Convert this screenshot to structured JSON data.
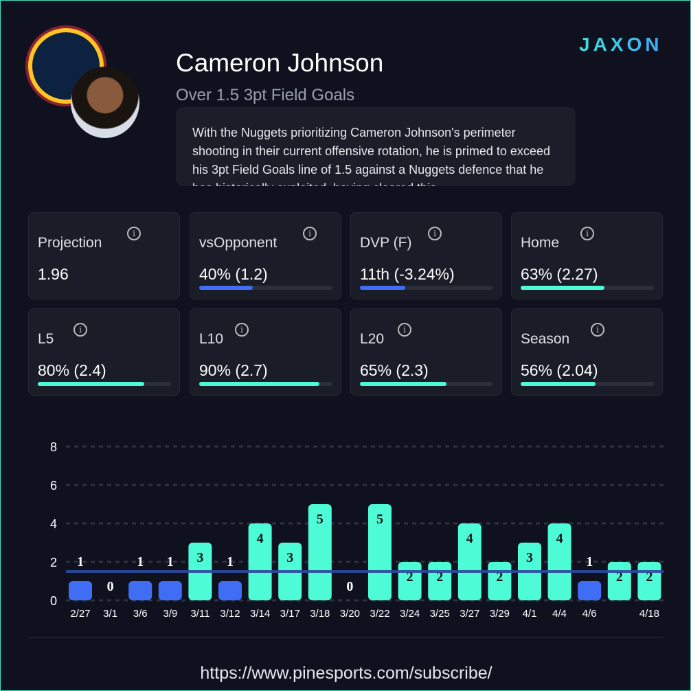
{
  "header": {
    "player_name": "Cameron Johnson",
    "prop": "Over 1.5 3pt Field Goals",
    "description": "With the Nuggets prioritizing Cameron Johnson's perimeter shooting in their current offensive rotation, he is primed to exceed his 3pt Field Goals line of 1.5 against a Nuggets defence that he has historically exploited, having cleared this",
    "brand": "JAXON",
    "team_logo": "denver-nuggets-logo"
  },
  "stats": [
    {
      "label": "Projection",
      "value": "1.96",
      "pct": null,
      "color": null
    },
    {
      "label": "vsOpponent",
      "value": "40% (1.2)",
      "pct": 40,
      "color": "#3f6ef5"
    },
    {
      "label": "DVP (F)",
      "value": "11th (-3.24%)",
      "pct": 34,
      "color": "#3f6ef5"
    },
    {
      "label": "Home",
      "value": "63% (2.27)",
      "pct": 63,
      "color": "#4dfbd6"
    },
    {
      "label": "L5",
      "value": "80% (2.4)",
      "pct": 80,
      "color": "#4dfbd6"
    },
    {
      "label": "L10",
      "value": "90% (2.7)",
      "pct": 90,
      "color": "#4dfbd6"
    },
    {
      "label": "L20",
      "value": "65% (2.3)",
      "pct": 65,
      "color": "#4dfbd6"
    },
    {
      "label": "Season",
      "value": "56% (2.04)",
      "pct": 56,
      "color": "#4dfbd6"
    }
  ],
  "chart_data": {
    "type": "bar",
    "categories": [
      "2/27",
      "3/1",
      "3/6",
      "3/9",
      "3/11",
      "3/12",
      "3/14",
      "3/17",
      "3/18",
      "3/20",
      "3/22",
      "3/24",
      "3/25",
      "3/27",
      "3/29",
      "4/1",
      "4/4",
      "4/6",
      "",
      "4/18"
    ],
    "values": [
      1,
      0,
      1,
      1,
      3,
      1,
      4,
      3,
      5,
      0,
      5,
      2,
      2,
      4,
      2,
      3,
      4,
      1,
      2,
      2
    ],
    "line": 1.5,
    "ylim": [
      0,
      8
    ],
    "yticks": [
      0,
      2,
      4,
      6,
      8
    ],
    "grid": true,
    "colors": {
      "over": "#4dfbd6",
      "under": "#3f6ef5",
      "line": "#2c4a9e"
    }
  },
  "footer": {
    "url": "https://www.pinesports.com/subscribe/"
  }
}
